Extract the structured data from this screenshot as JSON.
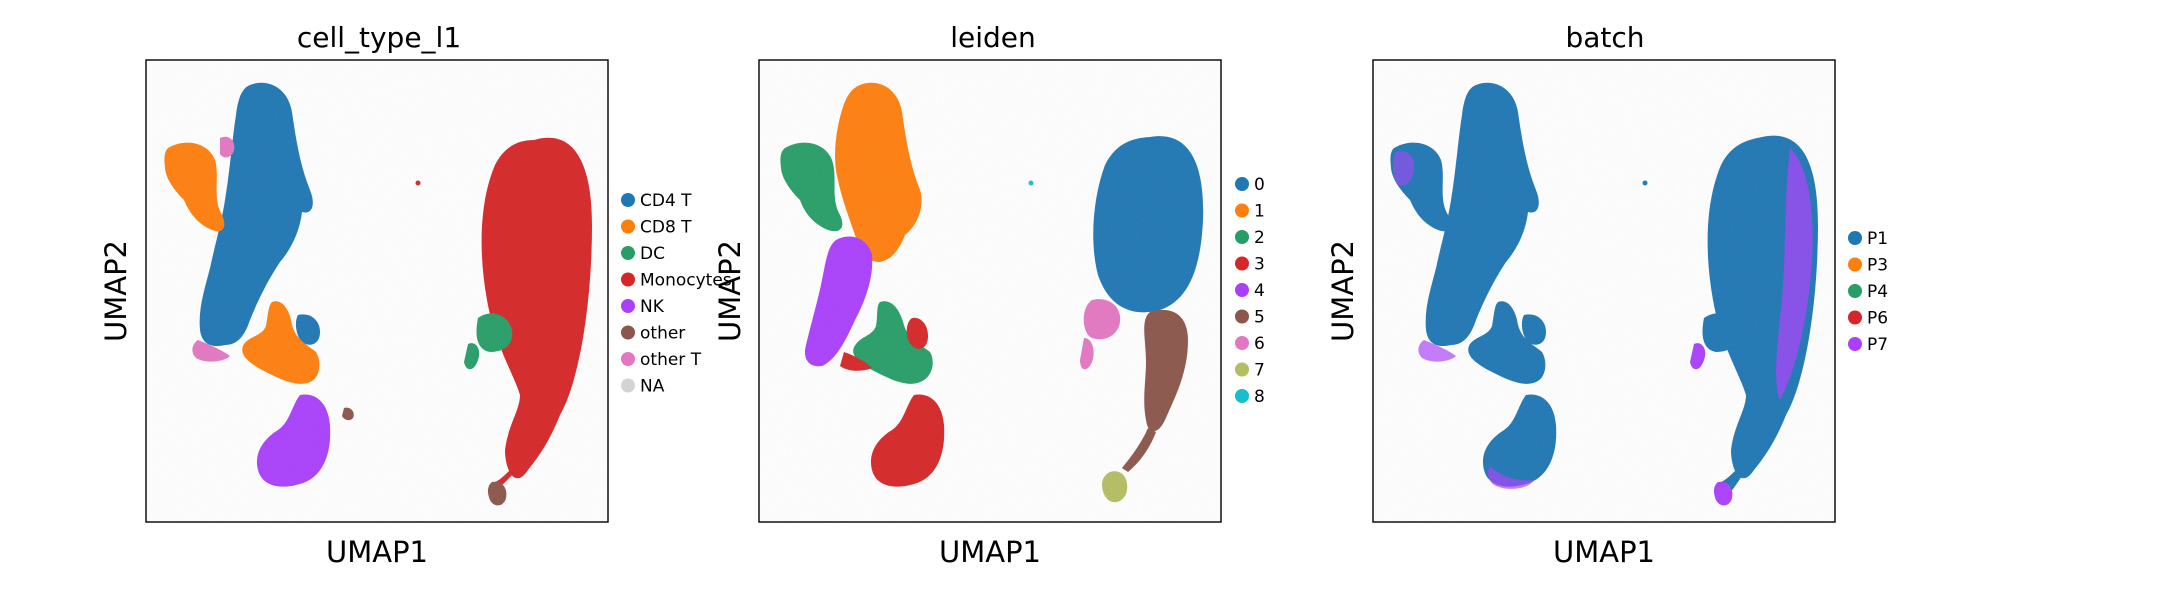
{
  "chart_data": [
    {
      "type": "scatter",
      "title": "cell_type_l1",
      "xlabel": "UMAP1",
      "ylabel": "UMAP2",
      "xticks": [],
      "yticks": [],
      "grid": false,
      "legend_placement": "right-outside",
      "legend": [
        {
          "label": "CD4 T",
          "color": "#1f77b4"
        },
        {
          "label": "CD8 T",
          "color": "#ff7f0e"
        },
        {
          "label": "DC",
          "color": "#279e68"
        },
        {
          "label": "Monocytes",
          "color": "#d62728"
        },
        {
          "label": "NK",
          "color": "#aa40fc"
        },
        {
          "label": "other",
          "color": "#8c564b"
        },
        {
          "label": "other T",
          "color": "#e377c2"
        },
        {
          "label": "NA",
          "color": "#d3d3d3"
        }
      ],
      "clusters": [
        {
          "category": "CD4 T",
          "shape": "umbrella-left"
        },
        {
          "category": "CD8 T",
          "shape": "left-lobe"
        },
        {
          "category": "CD8 T",
          "shape": "middle-band"
        },
        {
          "category": "NK",
          "shape": "bottom-blob"
        },
        {
          "category": "other T",
          "shape": "edges"
        },
        {
          "category": "Monocytes",
          "shape": "right-ellipse-and-tail"
        },
        {
          "category": "DC",
          "shape": "right-side-patch"
        },
        {
          "category": "other",
          "shape": "tail-tips"
        }
      ]
    },
    {
      "type": "scatter",
      "title": "leiden",
      "xlabel": "UMAP1",
      "ylabel": "UMAP2",
      "xticks": [],
      "yticks": [],
      "grid": false,
      "legend_placement": "right-outside",
      "legend": [
        {
          "label": "0",
          "color": "#1f77b4"
        },
        {
          "label": "1",
          "color": "#ff7f0e"
        },
        {
          "label": "2",
          "color": "#279e68"
        },
        {
          "label": "3",
          "color": "#d62728"
        },
        {
          "label": "4",
          "color": "#aa40fc"
        },
        {
          "label": "5",
          "color": "#8c564b"
        },
        {
          "label": "6",
          "color": "#e377c2"
        },
        {
          "label": "7",
          "color": "#b5bd61"
        },
        {
          "label": "8",
          "color": "#17becf"
        }
      ],
      "clusters": [
        {
          "category": "0",
          "shape": "right-ellipse"
        },
        {
          "category": "1",
          "shape": "upper-left-column"
        },
        {
          "category": "2",
          "shape": "left-lobe-and-middle"
        },
        {
          "category": "3",
          "shape": "bottom-blob"
        },
        {
          "category": "4",
          "shape": "left-band"
        },
        {
          "category": "5",
          "shape": "right-tail"
        },
        {
          "category": "6",
          "shape": "right-side-patch"
        },
        {
          "category": "7",
          "shape": "tail-tip"
        },
        {
          "category": "8",
          "shape": "speck"
        }
      ]
    },
    {
      "type": "scatter",
      "title": "batch",
      "xlabel": "UMAP1",
      "ylabel": "UMAP2",
      "xticks": [],
      "yticks": [],
      "grid": false,
      "legend_placement": "right-outside",
      "legend": [
        {
          "label": "P1",
          "color": "#1f77b4"
        },
        {
          "label": "P3",
          "color": "#ff7f0e"
        },
        {
          "label": "P4",
          "color": "#279e68"
        },
        {
          "label": "P6",
          "color": "#d62728"
        },
        {
          "label": "P7",
          "color": "#aa40fc"
        }
      ],
      "clusters": [
        {
          "category": "P1",
          "shape": "all-regions"
        },
        {
          "category": "P7",
          "shape": "mixed-throughout"
        }
      ]
    }
  ]
}
